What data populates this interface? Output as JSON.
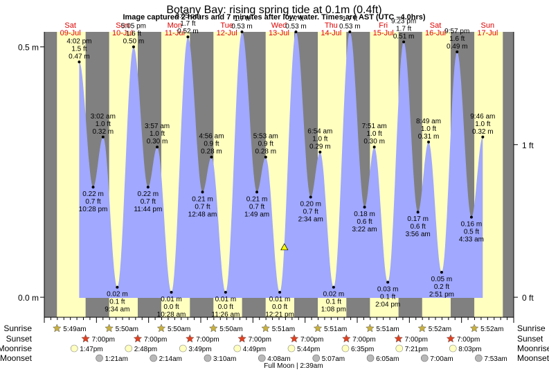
{
  "chart_data": {
    "type": "area",
    "title": "Botany Bay: rising  spring tide at 0.1m (0.4ft)",
    "subtitle": "Image captured 2 hours and 7 minutes after low water. Times are AST (UTC –4.0hrs)",
    "y_left_ticks": [
      {
        "value": 0.5,
        "label": "0.5 m"
      },
      {
        "value": 0.0,
        "label": "0.0 m"
      }
    ],
    "y_right_ticks": [
      {
        "value_ft": 1,
        "label": "1 ft"
      },
      {
        "value_ft": 0,
        "label": "0 ft"
      }
    ],
    "ylim_m": [
      -0.04,
      0.53
    ],
    "xlim_hours": [
      0,
      216
    ],
    "day_labels": [
      {
        "day": "Sat",
        "date": "09-Jul",
        "hour": 12
      },
      {
        "day": "Sun",
        "date": "10-Jul",
        "hour": 36
      },
      {
        "day": "Mon",
        "date": "11-Jul",
        "hour": 60
      },
      {
        "day": "Tue",
        "date": "12-Jul",
        "hour": 84
      },
      {
        "day": "Wed",
        "date": "13-Jul",
        "hour": 108
      },
      {
        "day": "Thu",
        "date": "14-Jul",
        "hour": 132
      },
      {
        "day": "Fri",
        "date": "15-Jul",
        "hour": 156
      },
      {
        "day": "Sat",
        "date": "16-Jul",
        "hour": 180
      },
      {
        "day": "Sun",
        "date": "17-Jul",
        "hour": 204
      }
    ],
    "night_bands": [
      {
        "start": 0,
        "end": 5.82
      },
      {
        "start": 19.0,
        "end": 29.83
      },
      {
        "start": 43.0,
        "end": 53.83
      },
      {
        "start": 67.0,
        "end": 77.83
      },
      {
        "start": 91.0,
        "end": 101.85
      },
      {
        "start": 115.0,
        "end": 125.85
      },
      {
        "start": 139.0,
        "end": 149.85
      },
      {
        "start": 163.0,
        "end": 173.87
      },
      {
        "start": 187.0,
        "end": 197.87
      },
      {
        "start": 211.0,
        "end": 216
      }
    ],
    "tide_events": [
      {
        "hour": 16.07,
        "m": 0.47,
        "label": [
          "4:02 pm",
          "1.5 ft",
          "0.47 m"
        ],
        "label_pos": "above"
      },
      {
        "hour": 22.47,
        "m": 0.22,
        "label": [
          "0.22 m",
          "0.7 ft",
          "10:28 pm"
        ],
        "label_pos": "below"
      },
      {
        "hour": 27.03,
        "m": 0.32,
        "label": [
          "3:02 am",
          "1.0 ft",
          "0.32 m"
        ],
        "label_pos": "above"
      },
      {
        "hour": 33.57,
        "m": 0.02,
        "label": [
          "0.02 m",
          "0.1 ft",
          "9:34 am"
        ],
        "label_pos": "below"
      },
      {
        "hour": 41.08,
        "m": 0.5,
        "label": [
          "5:05 pm",
          "1.6 ft",
          "0.50 m"
        ],
        "label_pos": "above"
      },
      {
        "hour": 47.73,
        "m": 0.22,
        "label": [
          "0.22 m",
          "0.7 ft",
          "11:44 pm"
        ],
        "label_pos": "below"
      },
      {
        "hour": 51.95,
        "m": 0.3,
        "label": [
          "3:57 am",
          "1.0 ft",
          "0.30 m"
        ],
        "label_pos": "above"
      },
      {
        "hour": 58.47,
        "m": 0.01,
        "label": [
          "0.01 m",
          "0.0 ft",
          "10:28 am"
        ],
        "label_pos": "below"
      },
      {
        "hour": 66.08,
        "m": 0.52,
        "label": [
          "6:05 pm",
          "1.7 ft",
          "0.52 m"
        ],
        "label_pos": "above"
      },
      {
        "hour": 72.8,
        "m": 0.21,
        "label": [
          "0.21 m",
          "0.7 ft",
          "12:48 am"
        ],
        "label_pos": "below"
      },
      {
        "hour": 76.93,
        "m": 0.28,
        "label": [
          "4:56 am",
          "0.9 ft",
          "0.28 m"
        ],
        "label_pos": "above"
      },
      {
        "hour": 83.43,
        "m": 0.01,
        "label": [
          "0.01 m",
          "0.0 ft",
          "11:26 am"
        ],
        "label_pos": "below"
      },
      {
        "hour": 90.95,
        "m": 0.53,
        "label": [
          "",
          "1.7 ft",
          "0.53 m"
        ],
        "label_pos": "above"
      },
      {
        "hour": 97.82,
        "m": 0.21,
        "label": [
          "0.21 m",
          "0.7 ft",
          "1:49 am"
        ],
        "label_pos": "below"
      },
      {
        "hour": 101.88,
        "m": 0.28,
        "label": [
          "5:53 am",
          "0.9 ft",
          "0.28 m"
        ],
        "label_pos": "above"
      },
      {
        "hour": 108.35,
        "m": 0.01,
        "label": [
          "0.01 m",
          "0.0 ft",
          "12:21 pm"
        ],
        "label_pos": "below"
      },
      {
        "hour": 115.8,
        "m": 0.53,
        "label": [
          "",
          "1.7 ft",
          "0.53 m"
        ],
        "label_pos": "above"
      },
      {
        "hour": 122.57,
        "m": 0.2,
        "label": [
          "0.20 m",
          "0.7 ft",
          "2:34 am"
        ],
        "label_pos": "below"
      },
      {
        "hour": 126.9,
        "m": 0.29,
        "label": [
          "6:54 am",
          "1.0 ft",
          "0.29 m"
        ],
        "label_pos": "above"
      },
      {
        "hour": 133.13,
        "m": 0.02,
        "label": [
          "0.02 m",
          "0.1 ft",
          "1:08 pm"
        ],
        "label_pos": "below"
      },
      {
        "hour": 140.6,
        "m": 0.53,
        "label": [
          "",
          "1.7 ft",
          "0.53 m"
        ],
        "label_pos": "above"
      },
      {
        "hour": 147.37,
        "m": 0.18,
        "label": [
          "0.18 m",
          "0.6 ft",
          "3:22 am"
        ],
        "label_pos": "below"
      },
      {
        "hour": 151.85,
        "m": 0.3,
        "label": [
          "7:51 am",
          "1.0 ft",
          "0.30 m"
        ],
        "label_pos": "above"
      },
      {
        "hour": 158.07,
        "m": 0.03,
        "label": [
          "0.03 m",
          "0.1 ft",
          "2:04 pm"
        ],
        "label_pos": "below"
      },
      {
        "hour": 165.38,
        "m": 0.51,
        "label": [
          "9:23 pm",
          "1.7 ft",
          "0.51 m"
        ],
        "label_pos": "above"
      },
      {
        "hour": 171.93,
        "m": 0.17,
        "label": [
          "0.17 m",
          "0.6 ft",
          "3:56 am"
        ],
        "label_pos": "below"
      },
      {
        "hour": 176.82,
        "m": 0.31,
        "label": [
          "8:49 am",
          "1.0 ft",
          "0.31 m"
        ],
        "label_pos": "above"
      },
      {
        "hour": 182.85,
        "m": 0.05,
        "label": [
          "0.05 m",
          "0.2 ft",
          "2:51 pm"
        ],
        "label_pos": "below"
      },
      {
        "hour": 189.95,
        "m": 0.49,
        "label": [
          "9:57 pm",
          "1.6 ft",
          "0.49 m"
        ],
        "label_pos": "above"
      },
      {
        "hour": 196.55,
        "m": 0.16,
        "label": [
          "0.16 m",
          "0.5 ft",
          "4:33 am"
        ],
        "label_pos": "below"
      },
      {
        "hour": 201.77,
        "m": 0.32,
        "label": [
          "9:46 am",
          "1.0 ft",
          "0.32 m"
        ],
        "label_pos": "above"
      }
    ],
    "current_marker": {
      "hour": 110.47,
      "m": 0.1
    },
    "rows": {
      "sunrise": "Sunrise",
      "sunset": "Sunset",
      "moonrise": "Moonrise",
      "moonset": "Moonset"
    },
    "sunrise": [
      {
        "hour": 5.82,
        "label": "5:49am"
      },
      {
        "hour": 29.83,
        "label": "5:50am"
      },
      {
        "hour": 53.83,
        "label": "5:50am"
      },
      {
        "hour": 77.83,
        "label": "5:50am"
      },
      {
        "hour": 101.85,
        "label": "5:51am"
      },
      {
        "hour": 125.85,
        "label": "5:51am"
      },
      {
        "hour": 149.85,
        "label": "5:51am"
      },
      {
        "hour": 173.87,
        "label": "5:52am"
      },
      {
        "hour": 197.87,
        "label": "5:52am"
      }
    ],
    "sunset": [
      {
        "hour": 19.0,
        "label": "7:00pm"
      },
      {
        "hour": 43.0,
        "label": "7:00pm"
      },
      {
        "hour": 67.0,
        "label": "7:00pm"
      },
      {
        "hour": 91.0,
        "label": "7:00pm"
      },
      {
        "hour": 115.0,
        "label": "7:00pm"
      },
      {
        "hour": 139.0,
        "label": "7:00pm"
      },
      {
        "hour": 163.0,
        "label": "7:00pm"
      },
      {
        "hour": 187.0,
        "label": "7:00pm"
      }
    ],
    "moonrise": [
      {
        "hour": 13.78,
        "label": "1:47pm"
      },
      {
        "hour": 38.8,
        "label": "2:48pm"
      },
      {
        "hour": 63.82,
        "label": "3:49pm"
      },
      {
        "hour": 88.82,
        "label": "4:49pm"
      },
      {
        "hour": 113.73,
        "label": "5:44pm"
      },
      {
        "hour": 138.58,
        "label": "6:35pm"
      },
      {
        "hour": 163.35,
        "label": "7:21pm"
      },
      {
        "hour": 188.05,
        "label": "8:03pm"
      }
    ],
    "moonset": [
      {
        "hour": 25.35,
        "label": "1:21am"
      },
      {
        "hour": 50.23,
        "label": "2:14am"
      },
      {
        "hour": 75.17,
        "label": "3:10am"
      },
      {
        "hour": 100.13,
        "label": "4:08am"
      },
      {
        "hour": 125.12,
        "label": "5:07am"
      },
      {
        "hour": 150.08,
        "label": "6:05am"
      },
      {
        "hour": 175.0,
        "label": "7:00am"
      },
      {
        "hour": 199.88,
        "label": "7:53am"
      }
    ],
    "footer": "Full Moon | 2:39am",
    "colors": {
      "night": "#808080",
      "day": "#ffffc0",
      "water": "#a0a8ff",
      "day_label": "#e00000",
      "sun_star": "#c8b040",
      "sunset_star": "#e04020",
      "moonrise": "#ffffc0",
      "moonset": "#b8b8b8",
      "marker": "#ffff00"
    }
  }
}
